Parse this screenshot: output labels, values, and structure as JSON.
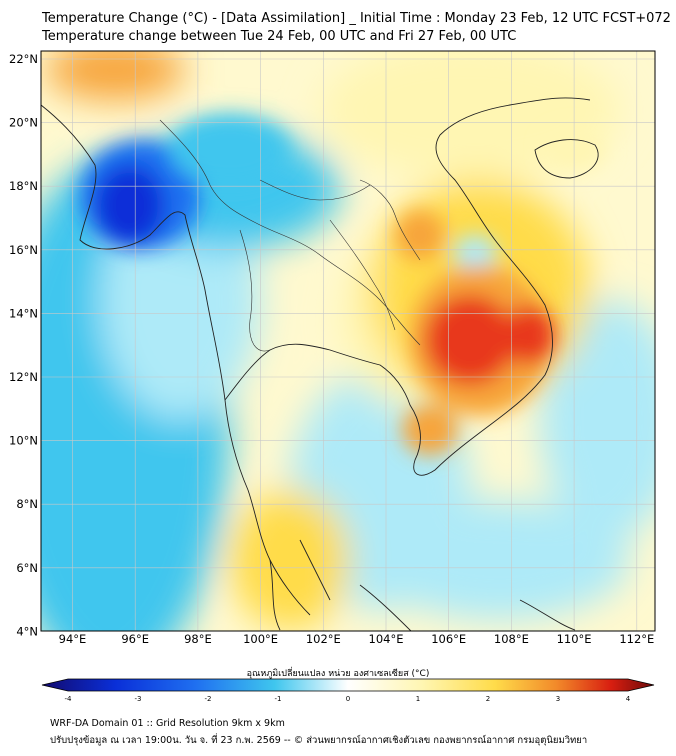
{
  "header": {
    "title_line1": "Temperature Change (°C) - [Data Assimilation] _ Initial Time : Monday 23 Feb, 12 UTC FCST+072",
    "title_line2": "Temperature change between Tue 24 Feb, 00 UTC and Fri 27 Feb, 00 UTC"
  },
  "map": {
    "lon_labels": [
      "94°E",
      "96°E",
      "98°E",
      "100°E",
      "102°E",
      "104°E",
      "106°E",
      "108°E",
      "110°E",
      "112°E"
    ],
    "lat_labels": [
      "22°N",
      "20°N",
      "18°N",
      "16°N",
      "14°N",
      "12°N",
      "10°N",
      "8°N",
      "6°N",
      "4°N"
    ],
    "field_colors": {
      "dark_blue": "#0a2fd8",
      "blue": "#1f6ff0",
      "cyan": "#3fc6ee",
      "light_cyan": "#aeeaf8",
      "white": "#ffffff",
      "light_yellow": "#fff6b3",
      "yellow": "#ffdc4a",
      "orange": "#f7a43a",
      "red": "#e8391f"
    }
  },
  "colorbar": {
    "title": "อุณหภูมิเปลี่ยนแปลง หน่วย องศาเซลเซียส (°C)",
    "ticks": [
      "-4",
      "-3",
      "-2",
      "-1",
      "0",
      "1",
      "2",
      "3",
      "4"
    ],
    "stops": [
      "#120a6e",
      "#0a2fd8",
      "#1f6ff0",
      "#3fc6ee",
      "#ffffff",
      "#fff6b3",
      "#ffdc4a",
      "#f28a2a",
      "#d81e10",
      "#6a0a0a"
    ]
  },
  "footer": {
    "line1": "WRF-DA Domain 01 :: Grid Resolution 9km x 9km",
    "line2": "ปรับปรุงข้อมูล ณ เวลา 19:00น. วัน จ. ที่ 23 ก.พ. 2569 -- © ส่วนพยากรณ์อากาศเชิงตัวเลข กองพยากรณ์อากาศ กรมอุตุนิยมวิทยา"
  }
}
